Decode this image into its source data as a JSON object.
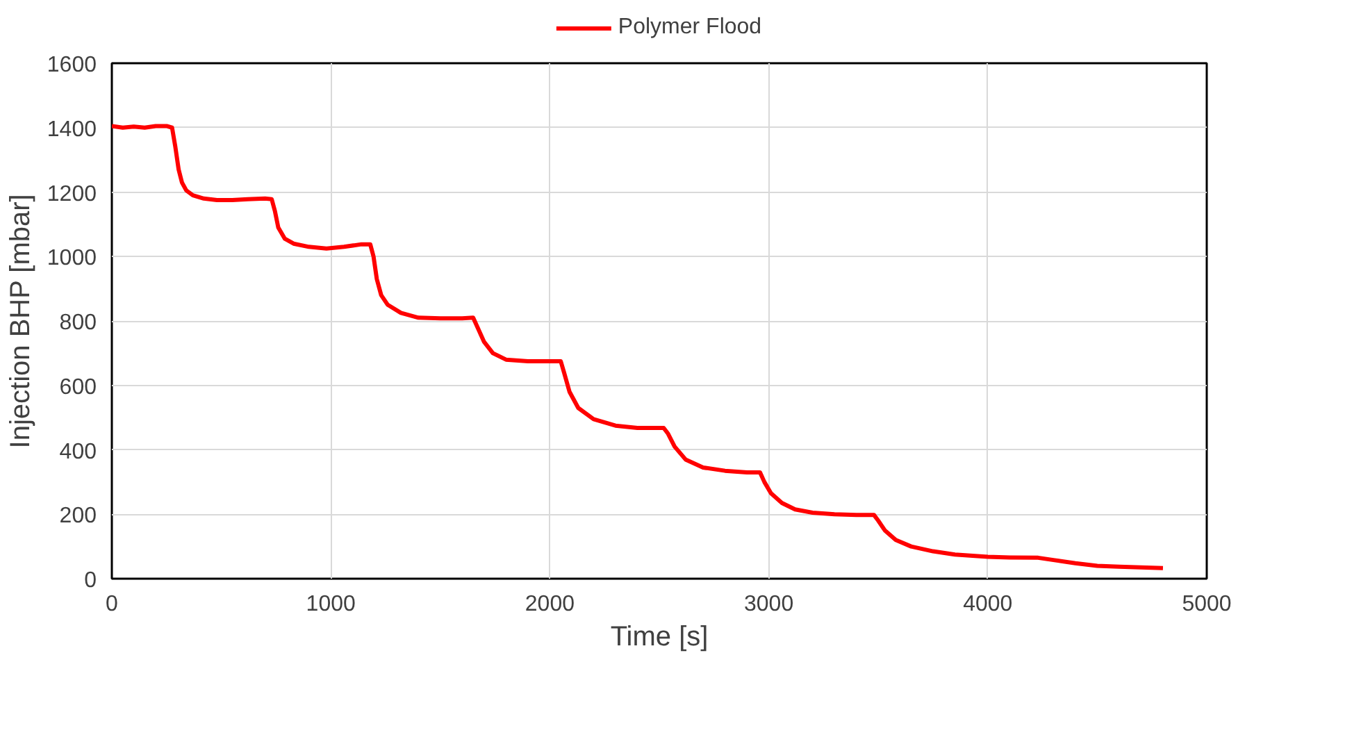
{
  "chart_data": {
    "type": "line",
    "xlabel": "Time [s]",
    "ylabel": "Injection BHP [mbar]",
    "xlim": [
      0,
      5000
    ],
    "xticks": [
      0,
      1000,
      2000,
      3000,
      4000,
      5000
    ],
    "ylim": [
      0,
      1600
    ],
    "yticks": [
      0,
      200,
      400,
      600,
      800,
      1000,
      1200,
      1400,
      1600
    ],
    "grid": true,
    "legend": "top",
    "line_style": "solid",
    "marker": "none",
    "series": [
      {
        "name": "Polymer Flood",
        "color": "#ff0000",
        "x": [
          0,
          50,
          100,
          150,
          200,
          250,
          275,
          290,
          305,
          320,
          340,
          370,
          420,
          480,
          550,
          620,
          700,
          730,
          745,
          760,
          790,
          830,
          900,
          980,
          1060,
          1140,
          1180,
          1195,
          1210,
          1230,
          1260,
          1320,
          1400,
          1500,
          1600,
          1650,
          1670,
          1700,
          1740,
          1800,
          1900,
          2000,
          2050,
          2065,
          2090,
          2130,
          2200,
          2300,
          2400,
          2520,
          2540,
          2570,
          2620,
          2700,
          2800,
          2900,
          2960,
          2980,
          3010,
          3060,
          3120,
          3200,
          3300,
          3400,
          3480,
          3500,
          3530,
          3580,
          3650,
          3750,
          3850,
          4000,
          4100,
          4230,
          4300,
          4400,
          4500,
          4600,
          4700,
          4800
        ],
        "values": [
          1405,
          1400,
          1403,
          1400,
          1405,
          1405,
          1400,
          1340,
          1270,
          1230,
          1205,
          1190,
          1180,
          1175,
          1175,
          1178,
          1180,
          1178,
          1140,
          1090,
          1055,
          1040,
          1030,
          1025,
          1030,
          1038,
          1038,
          1000,
          930,
          880,
          850,
          825,
          810,
          808,
          808,
          810,
          780,
          735,
          700,
          680,
          675,
          675,
          675,
          640,
          580,
          530,
          495,
          475,
          468,
          468,
          450,
          410,
          370,
          345,
          335,
          330,
          330,
          300,
          265,
          235,
          215,
          205,
          200,
          198,
          198,
          180,
          150,
          120,
          100,
          85,
          75,
          68,
          66,
          65,
          58,
          48,
          40,
          37,
          35,
          33
        ]
      }
    ]
  }
}
